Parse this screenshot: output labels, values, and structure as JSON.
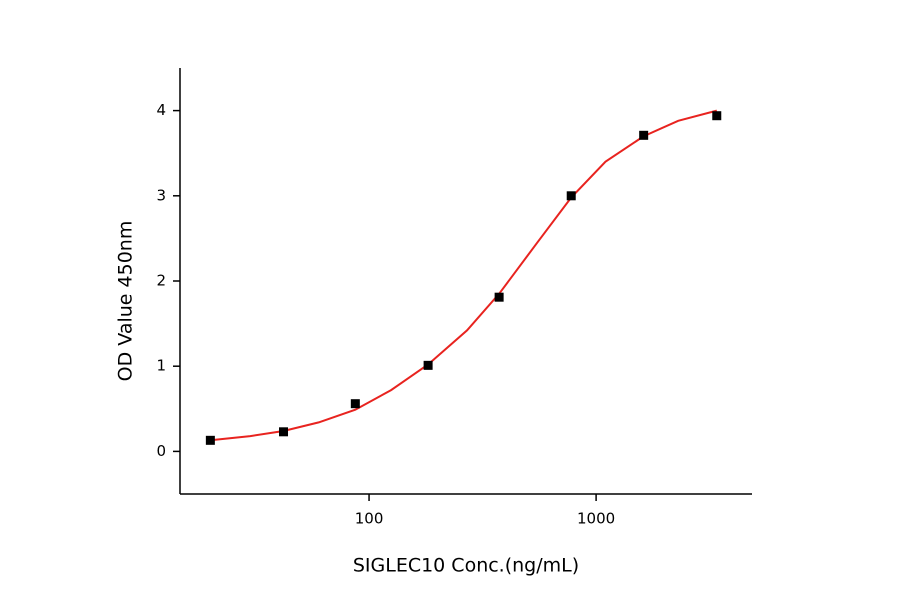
{
  "chart_data": {
    "type": "scatter",
    "x_label": "SIGLEC10 Conc.(ng/mL)",
    "y_label": "OD Value 450nm",
    "xscale": "log",
    "xlim": [
      14.7,
      4860
    ],
    "xticks": [
      100,
      1000
    ],
    "ylim": [
      -0.5,
      4.5
    ],
    "yticks": [
      0,
      1,
      2,
      3,
      4
    ],
    "series": [
      {
        "color": "#000000",
        "marker": "square",
        "x": [
          20,
          42,
          87,
          182,
          374,
          777,
          1620,
          3400
        ],
        "values": [
          0.13,
          0.23,
          0.56,
          1.01,
          1.81,
          3.0,
          3.71,
          3.94
        ]
      },
      {
        "color": "#e8231f",
        "marker": "line",
        "x": [
          20,
          30,
          42,
          60,
          87,
          125,
          182,
          270,
          374,
          550,
          777,
          1100,
          1620,
          2300,
          3400
        ],
        "values": [
          0.13,
          0.18,
          0.24,
          0.34,
          0.49,
          0.72,
          1.02,
          1.42,
          1.85,
          2.45,
          2.98,
          3.4,
          3.7,
          3.88,
          4.0
        ]
      }
    ]
  }
}
